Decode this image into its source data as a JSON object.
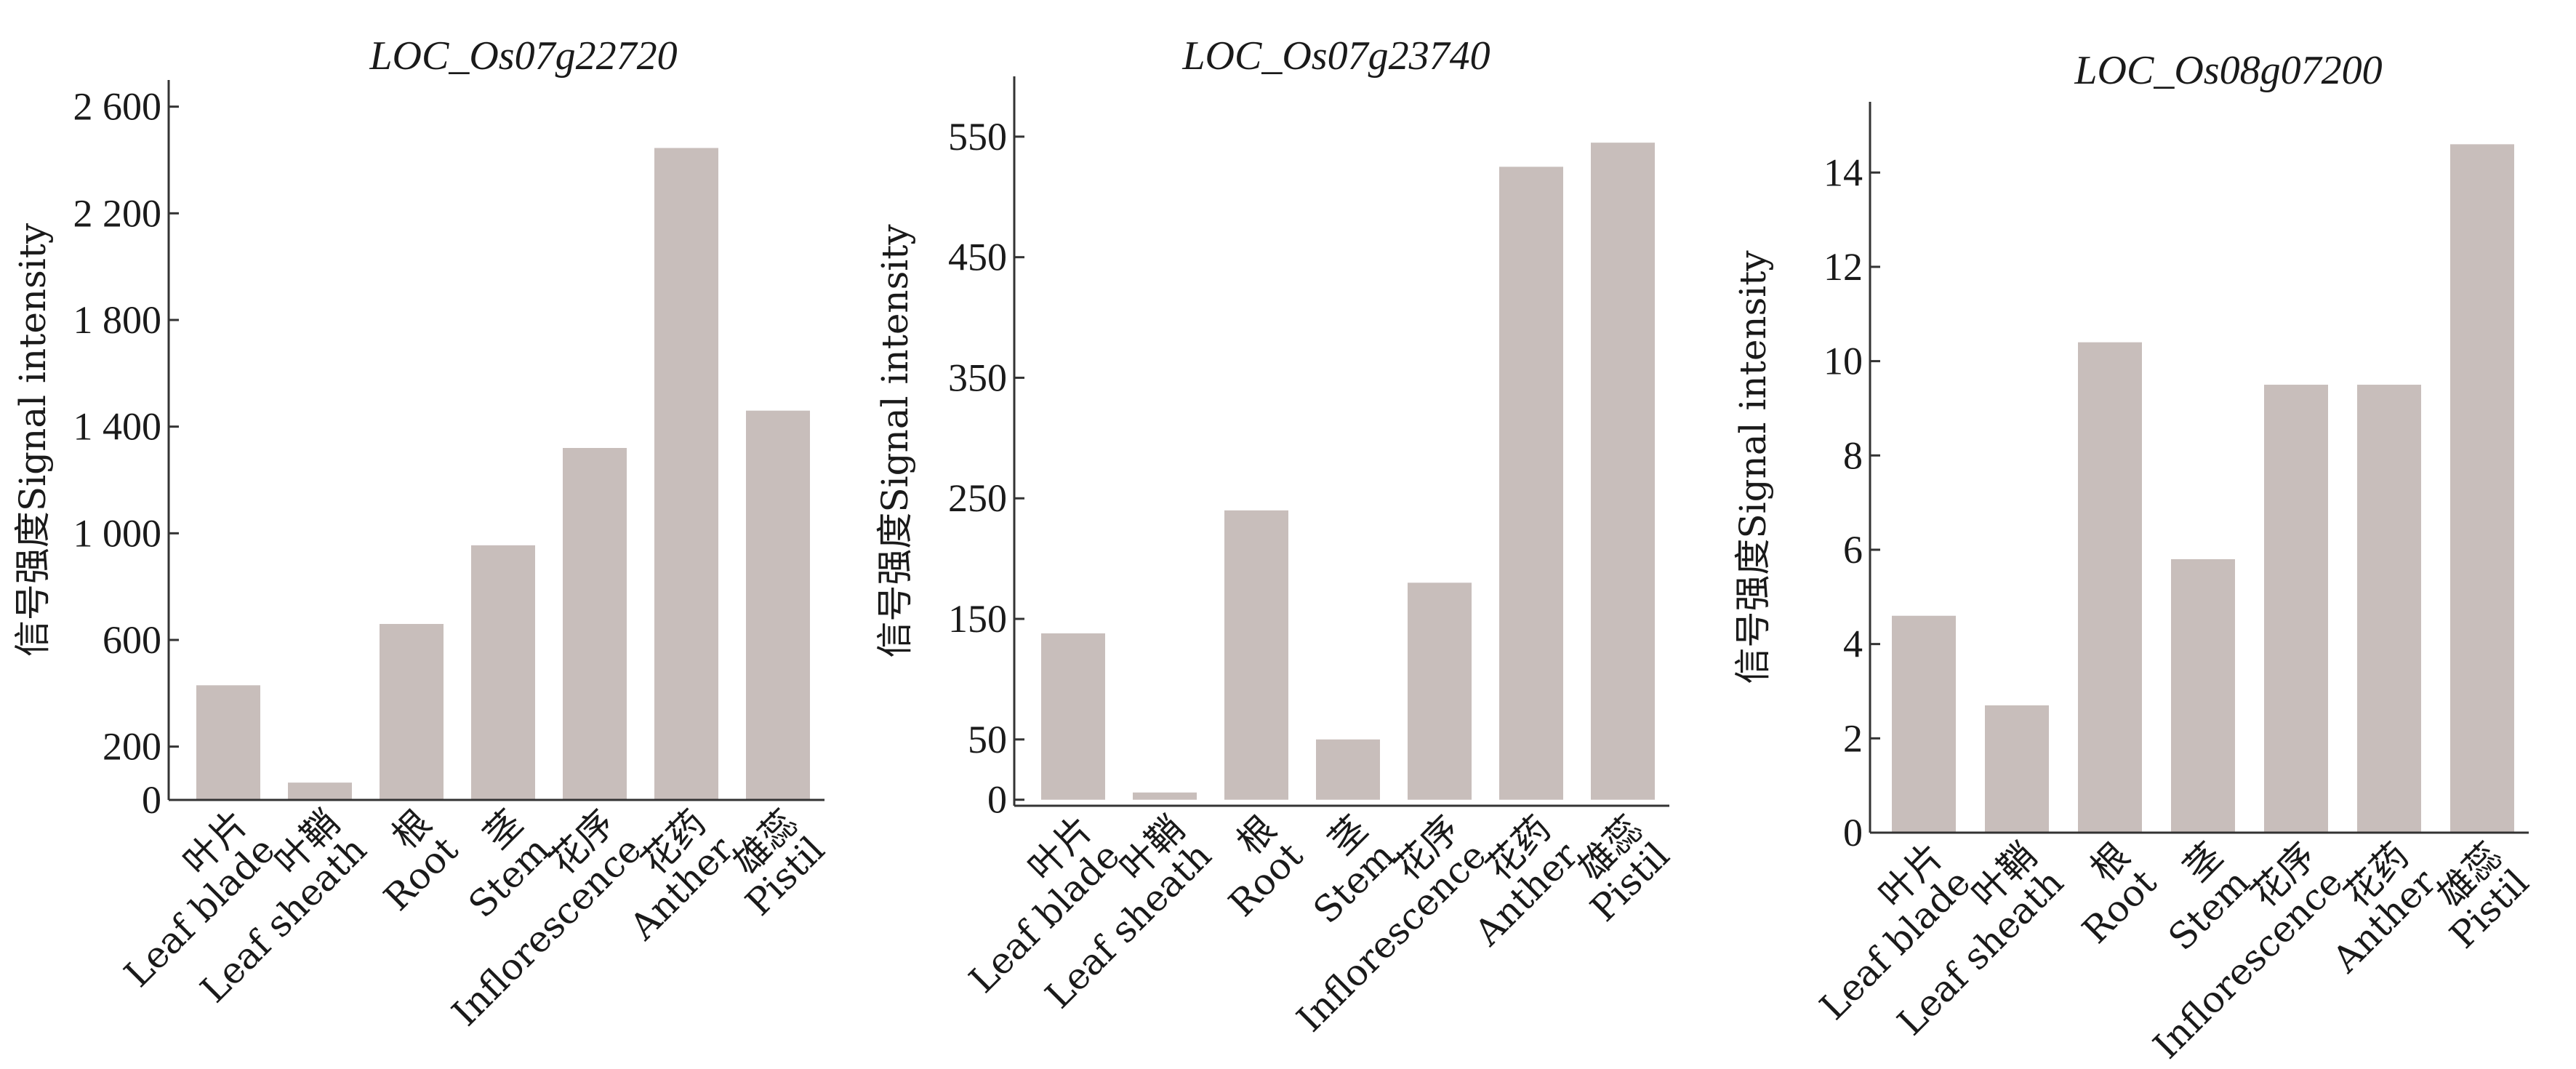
{
  "colors": {
    "bar": "#c8bebb",
    "axis": "#333333",
    "text": "#1a1a1a"
  },
  "chart_data": [
    {
      "type": "bar",
      "title": "LOC_Os07g22720",
      "ylabel": "信号强度Signal intensity",
      "xlabel": "",
      "categories": [
        {
          "cn": "叶片",
          "en": "Leaf blade"
        },
        {
          "cn": "叶鞘",
          "en": "Leaf sheath"
        },
        {
          "cn": "根",
          "en": "Root"
        },
        {
          "cn": "茎",
          "en": "Stem"
        },
        {
          "cn": "花序",
          "en": "Inflorescence"
        },
        {
          "cn": "花药",
          "en": "Anther"
        },
        {
          "cn": "雄蕊",
          "en": "Pistil"
        }
      ],
      "values": [
        430,
        65,
        660,
        955,
        1320,
        2445,
        1460
      ],
      "yticks": [
        0,
        200,
        600,
        1000,
        1400,
        1800,
        2200,
        2600
      ],
      "ytick_labels": [
        "0",
        "200",
        "600",
        "1 000",
        "1 400",
        "1 800",
        "2 200",
        "2 600"
      ],
      "ylim": [
        0,
        2700
      ],
      "grid": false,
      "legend": "none"
    },
    {
      "type": "bar",
      "title": "LOC_Os07g23740",
      "ylabel": "信号强度Signal intensity",
      "xlabel": "",
      "categories": [
        {
          "cn": "叶片",
          "en": "Leaf blade"
        },
        {
          "cn": "叶鞘",
          "en": "Leaf sheath"
        },
        {
          "cn": "根",
          "en": "Root"
        },
        {
          "cn": "茎",
          "en": "Stem"
        },
        {
          "cn": "花序",
          "en": "Inflorescence"
        },
        {
          "cn": "花药",
          "en": "Anther"
        },
        {
          "cn": "雄蕊",
          "en": "Pistil"
        }
      ],
      "values": [
        138,
        6,
        240,
        50,
        180,
        525,
        545
      ],
      "yticks": [
        0,
        50,
        150,
        250,
        350,
        450,
        550
      ],
      "ytick_labels": [
        "0",
        "50",
        "150",
        "250",
        "350",
        "450",
        "550"
      ],
      "ylim": [
        -5,
        600
      ],
      "grid": false,
      "legend": "none"
    },
    {
      "type": "bar",
      "title": "LOC_Os08g07200",
      "ylabel": "信号强度Signal intensity",
      "xlabel": "",
      "categories": [
        {
          "cn": "叶片",
          "en": "Leaf blade"
        },
        {
          "cn": "叶鞘",
          "en": "Leaf sheath"
        },
        {
          "cn": "根",
          "en": "Root"
        },
        {
          "cn": "茎",
          "en": "Stem"
        },
        {
          "cn": "花序",
          "en": "Inflorescence"
        },
        {
          "cn": "花药",
          "en": "Anther"
        },
        {
          "cn": "雄蕊",
          "en": "Pistil"
        }
      ],
      "values": [
        4.6,
        2.7,
        10.4,
        5.8,
        9.5,
        9.5,
        14.6
      ],
      "yticks": [
        0,
        2,
        4,
        6,
        8,
        10,
        12,
        14
      ],
      "ytick_labels": [
        "0",
        "2",
        "4",
        "6",
        "8",
        "10",
        "12",
        "14"
      ],
      "ylim": [
        0,
        15.5
      ],
      "grid": false,
      "legend": "none"
    }
  ]
}
